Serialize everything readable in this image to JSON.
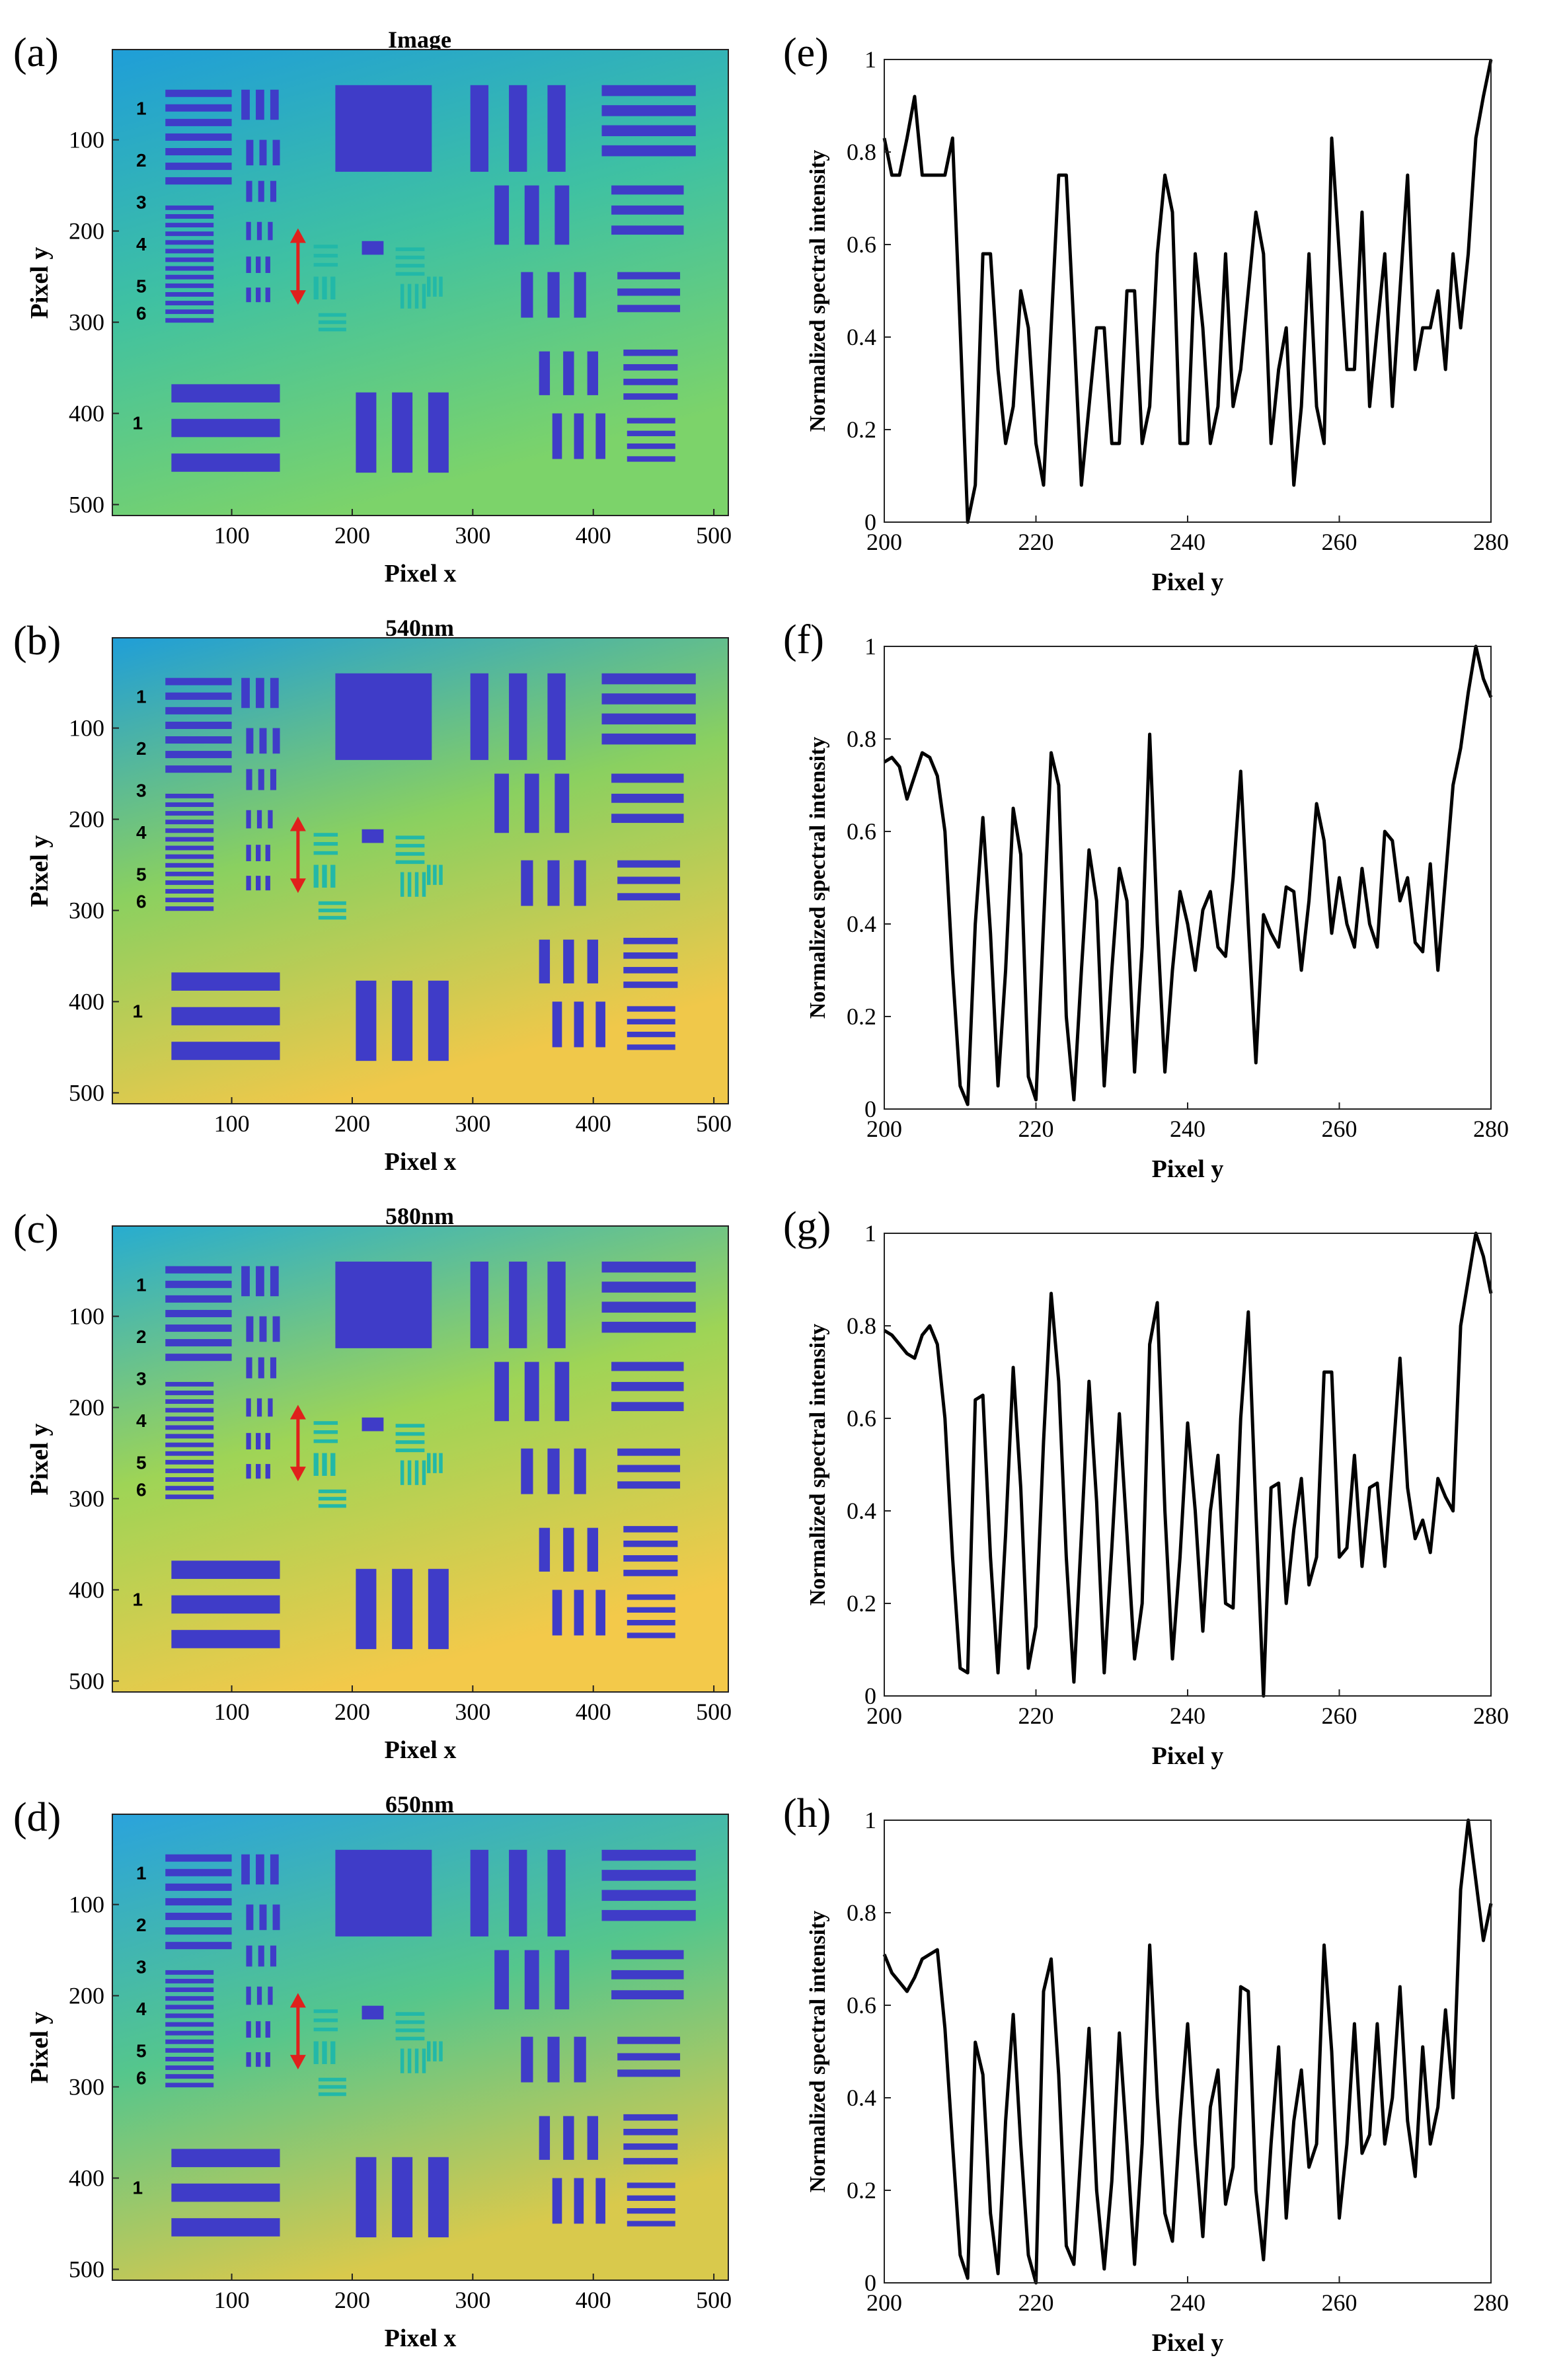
{
  "colors": {
    "map_low": "#3f3cc8",
    "map_mid": "#22b8a8",
    "map_high": "#f0c84a",
    "arrow": "#e0201c",
    "line": "#000000"
  },
  "chart_data": [
    {
      "type": "heatmap",
      "panel_label": "(a)",
      "title": "Image",
      "xlabel": "Pixel x",
      "ylabel": "Pixel y",
      "x_ticks": [
        "100",
        "200",
        "300",
        "400",
        "500"
      ],
      "y_ticks": [
        "100",
        "200",
        "300",
        "400",
        "500"
      ],
      "xlim": [
        1,
        512
      ],
      "ylim": [
        512,
        1
      ],
      "target_numbers": [
        "1",
        "2",
        "3",
        "4",
        "5",
        "6",
        "1"
      ],
      "background_gradient": [
        "#1f9ed8",
        "#3fc1a2",
        "#7cd36a"
      ]
    },
    {
      "type": "heatmap",
      "panel_label": "(b)",
      "title": "540nm",
      "xlabel": "Pixel x",
      "ylabel": "Pixel y",
      "x_ticks": [
        "100",
        "200",
        "300",
        "400",
        "500"
      ],
      "y_ticks": [
        "100",
        "200",
        "300",
        "400",
        "500"
      ],
      "xlim": [
        1,
        512
      ],
      "ylim": [
        512,
        1
      ],
      "target_numbers": [
        "1",
        "2",
        "3",
        "4",
        "5",
        "6",
        "1"
      ],
      "background_gradient": [
        "#1f9ed8",
        "#8ad060",
        "#f0c84a"
      ]
    },
    {
      "type": "heatmap",
      "panel_label": "(c)",
      "title": "580nm",
      "xlabel": "Pixel x",
      "ylabel": "Pixel y",
      "x_ticks": [
        "100",
        "200",
        "300",
        "400",
        "500"
      ],
      "y_ticks": [
        "100",
        "200",
        "300",
        "400",
        "500"
      ],
      "xlim": [
        1,
        512
      ],
      "ylim": [
        512,
        1
      ],
      "target_numbers": [
        "1",
        "2",
        "3",
        "4",
        "5",
        "6",
        "1"
      ],
      "background_gradient": [
        "#27acd0",
        "#9ed456",
        "#f3c94a"
      ]
    },
    {
      "type": "heatmap",
      "panel_label": "(d)",
      "title": "650nm",
      "xlabel": "Pixel x",
      "ylabel": "Pixel y",
      "x_ticks": [
        "100",
        "200",
        "300",
        "400",
        "500"
      ],
      "y_ticks": [
        "100",
        "200",
        "300",
        "400",
        "500"
      ],
      "xlim": [
        1,
        512
      ],
      "ylim": [
        512,
        1
      ],
      "target_numbers": [
        "1",
        "2",
        "3",
        "4",
        "5",
        "6",
        "1"
      ],
      "background_gradient": [
        "#2aa3dc",
        "#55c68c",
        "#d9c94c"
      ]
    },
    {
      "type": "line",
      "panel_label": "(e)",
      "xlabel": "Pixel y",
      "ylabel": "Normalized spectral intensity",
      "xlim": [
        200,
        280
      ],
      "ylim": [
        0,
        1
      ],
      "x_ticks": [
        "200",
        "220",
        "240",
        "260",
        "280"
      ],
      "y_ticks": [
        "0",
        "0.2",
        "0.4",
        "0.6",
        "0.8",
        "1"
      ],
      "x": [
        200,
        201,
        202,
        203,
        204,
        205,
        206,
        207,
        208,
        209,
        210,
        211,
        212,
        213,
        214,
        215,
        216,
        217,
        218,
        219,
        220,
        221,
        222,
        223,
        224,
        225,
        226,
        227,
        228,
        229,
        230,
        231,
        232,
        233,
        234,
        235,
        236,
        237,
        238,
        239,
        240,
        241,
        242,
        243,
        244,
        245,
        246,
        247,
        248,
        249,
        250,
        251,
        252,
        253,
        254,
        255,
        256,
        257,
        258,
        259,
        260,
        261,
        262,
        263,
        264,
        265,
        266,
        267,
        268,
        269,
        270,
        271,
        272,
        273,
        274,
        275,
        276,
        277,
        278,
        279,
        280
      ],
      "values": [
        0.83,
        0.75,
        0.75,
        0.83,
        0.92,
        0.75,
        0.75,
        0.75,
        0.75,
        0.83,
        0.42,
        0.0,
        0.08,
        0.58,
        0.58,
        0.33,
        0.17,
        0.25,
        0.5,
        0.42,
        0.17,
        0.08,
        0.42,
        0.75,
        0.75,
        0.42,
        0.08,
        0.25,
        0.42,
        0.42,
        0.17,
        0.17,
        0.5,
        0.5,
        0.17,
        0.25,
        0.58,
        0.75,
        0.67,
        0.17,
        0.17,
        0.58,
        0.42,
        0.17,
        0.25,
        0.58,
        0.25,
        0.33,
        0.5,
        0.67,
        0.58,
        0.17,
        0.33,
        0.42,
        0.08,
        0.25,
        0.58,
        0.25,
        0.17,
        0.83,
        0.58,
        0.33,
        0.33,
        0.67,
        0.25,
        0.42,
        0.58,
        0.25,
        0.5,
        0.75,
        0.33,
        0.42,
        0.42,
        0.5,
        0.33,
        0.58,
        0.42,
        0.58,
        0.83,
        0.92,
        1.0
      ]
    },
    {
      "type": "line",
      "panel_label": "(f)",
      "xlabel": "Pixel y",
      "ylabel": "Normalized spectral intensity",
      "xlim": [
        200,
        280
      ],
      "ylim": [
        0,
        1
      ],
      "x_ticks": [
        "200",
        "220",
        "240",
        "260",
        "280"
      ],
      "y_ticks": [
        "0",
        "0.2",
        "0.4",
        "0.6",
        "0.8",
        "1"
      ],
      "x": [
        200,
        201,
        202,
        203,
        204,
        205,
        206,
        207,
        208,
        209,
        210,
        211,
        212,
        213,
        214,
        215,
        216,
        217,
        218,
        219,
        220,
        221,
        222,
        223,
        224,
        225,
        226,
        227,
        228,
        229,
        230,
        231,
        232,
        233,
        234,
        235,
        236,
        237,
        238,
        239,
        240,
        241,
        242,
        243,
        244,
        245,
        246,
        247,
        248,
        249,
        250,
        251,
        252,
        253,
        254,
        255,
        256,
        257,
        258,
        259,
        260,
        261,
        262,
        263,
        264,
        265,
        266,
        267,
        268,
        269,
        270,
        271,
        272,
        273,
        274,
        275,
        276,
        277,
        278,
        279,
        280
      ],
      "values": [
        0.75,
        0.76,
        0.74,
        0.67,
        0.72,
        0.77,
        0.76,
        0.72,
        0.6,
        0.3,
        0.05,
        0.01,
        0.4,
        0.63,
        0.38,
        0.05,
        0.3,
        0.65,
        0.55,
        0.07,
        0.02,
        0.4,
        0.77,
        0.7,
        0.2,
        0.02,
        0.3,
        0.56,
        0.45,
        0.05,
        0.3,
        0.52,
        0.45,
        0.08,
        0.35,
        0.81,
        0.4,
        0.08,
        0.3,
        0.47,
        0.4,
        0.3,
        0.43,
        0.47,
        0.35,
        0.33,
        0.5,
        0.73,
        0.4,
        0.1,
        0.42,
        0.38,
        0.35,
        0.48,
        0.47,
        0.3,
        0.45,
        0.66,
        0.58,
        0.38,
        0.5,
        0.4,
        0.35,
        0.52,
        0.4,
        0.35,
        0.6,
        0.58,
        0.45,
        0.5,
        0.36,
        0.34,
        0.53,
        0.3,
        0.5,
        0.7,
        0.78,
        0.9,
        1.0,
        0.93,
        0.89
      ]
    },
    {
      "type": "line",
      "panel_label": "(g)",
      "xlabel": "Pixel y",
      "ylabel": "Normalized spectral intensity",
      "xlim": [
        200,
        280
      ],
      "ylim": [
        0,
        1
      ],
      "x_ticks": [
        "200",
        "220",
        "240",
        "260",
        "280"
      ],
      "y_ticks": [
        "0",
        "0.2",
        "0.4",
        "0.6",
        "0.8",
        "1"
      ],
      "x": [
        200,
        201,
        202,
        203,
        204,
        205,
        206,
        207,
        208,
        209,
        210,
        211,
        212,
        213,
        214,
        215,
        216,
        217,
        218,
        219,
        220,
        221,
        222,
        223,
        224,
        225,
        226,
        227,
        228,
        229,
        230,
        231,
        232,
        233,
        234,
        235,
        236,
        237,
        238,
        239,
        240,
        241,
        242,
        243,
        244,
        245,
        246,
        247,
        248,
        249,
        250,
        251,
        252,
        253,
        254,
        255,
        256,
        257,
        258,
        259,
        260,
        261,
        262,
        263,
        264,
        265,
        266,
        267,
        268,
        269,
        270,
        271,
        272,
        273,
        274,
        275,
        276,
        277,
        278,
        279,
        280
      ],
      "values": [
        0.79,
        0.78,
        0.76,
        0.74,
        0.73,
        0.78,
        0.8,
        0.76,
        0.6,
        0.3,
        0.06,
        0.05,
        0.64,
        0.65,
        0.3,
        0.05,
        0.35,
        0.71,
        0.45,
        0.06,
        0.15,
        0.55,
        0.87,
        0.68,
        0.3,
        0.03,
        0.35,
        0.68,
        0.42,
        0.05,
        0.32,
        0.61,
        0.35,
        0.08,
        0.2,
        0.76,
        0.85,
        0.4,
        0.08,
        0.3,
        0.59,
        0.4,
        0.14,
        0.4,
        0.52,
        0.2,
        0.19,
        0.6,
        0.83,
        0.4,
        0.0,
        0.45,
        0.46,
        0.2,
        0.36,
        0.47,
        0.24,
        0.3,
        0.7,
        0.7,
        0.3,
        0.32,
        0.52,
        0.28,
        0.45,
        0.46,
        0.28,
        0.5,
        0.73,
        0.45,
        0.34,
        0.38,
        0.31,
        0.47,
        0.43,
        0.4,
        0.8,
        0.9,
        1.0,
        0.95,
        0.87
      ]
    },
    {
      "type": "line",
      "panel_label": "(h)",
      "xlabel": "Pixel y",
      "ylabel": "Normalized spectral intensity",
      "xlim": [
        200,
        280
      ],
      "ylim": [
        0,
        1
      ],
      "x_ticks": [
        "200",
        "220",
        "240",
        "260",
        "280"
      ],
      "y_ticks": [
        "0",
        "0.2",
        "0.4",
        "0.6",
        "0.8",
        "1"
      ],
      "x": [
        200,
        201,
        202,
        203,
        204,
        205,
        206,
        207,
        208,
        209,
        210,
        211,
        212,
        213,
        214,
        215,
        216,
        217,
        218,
        219,
        220,
        221,
        222,
        223,
        224,
        225,
        226,
        227,
        228,
        229,
        230,
        231,
        232,
        233,
        234,
        235,
        236,
        237,
        238,
        239,
        240,
        241,
        242,
        243,
        244,
        245,
        246,
        247,
        248,
        249,
        250,
        251,
        252,
        253,
        254,
        255,
        256,
        257,
        258,
        259,
        260,
        261,
        262,
        263,
        264,
        265,
        266,
        267,
        268,
        269,
        270,
        271,
        272,
        273,
        274,
        275,
        276,
        277,
        278,
        279,
        280
      ],
      "values": [
        0.71,
        0.67,
        0.65,
        0.63,
        0.66,
        0.7,
        0.71,
        0.72,
        0.55,
        0.3,
        0.06,
        0.01,
        0.52,
        0.45,
        0.15,
        0.02,
        0.35,
        0.58,
        0.3,
        0.06,
        0.0,
        0.63,
        0.7,
        0.45,
        0.08,
        0.04,
        0.3,
        0.55,
        0.2,
        0.03,
        0.22,
        0.54,
        0.3,
        0.04,
        0.3,
        0.73,
        0.4,
        0.15,
        0.09,
        0.35,
        0.56,
        0.3,
        0.1,
        0.38,
        0.46,
        0.17,
        0.25,
        0.64,
        0.63,
        0.2,
        0.05,
        0.3,
        0.51,
        0.14,
        0.35,
        0.46,
        0.25,
        0.3,
        0.73,
        0.5,
        0.14,
        0.3,
        0.56,
        0.28,
        0.32,
        0.56,
        0.3,
        0.4,
        0.64,
        0.35,
        0.23,
        0.51,
        0.3,
        0.38,
        0.59,
        0.4,
        0.85,
        1.0,
        0.87,
        0.74,
        0.82
      ]
    }
  ]
}
